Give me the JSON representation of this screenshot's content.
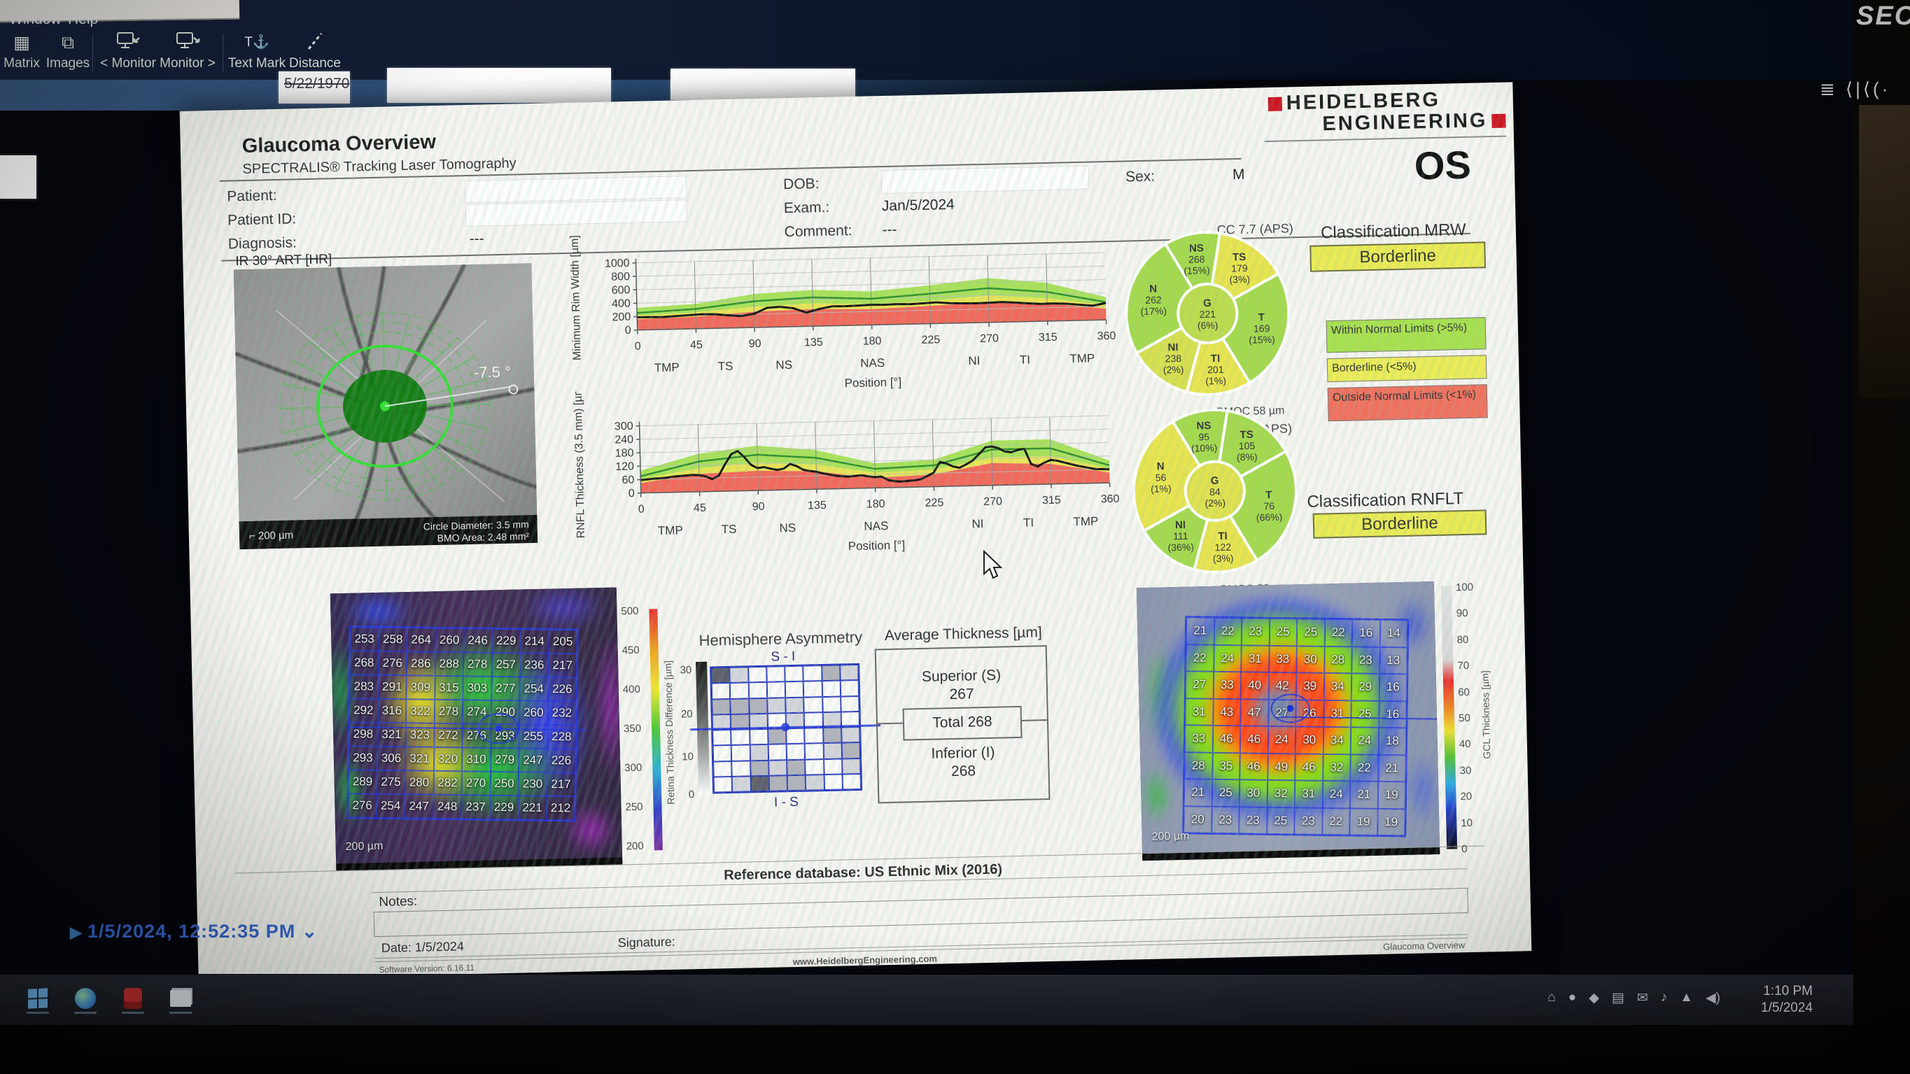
{
  "scene": {
    "wall_sign": "SECT",
    "corner_glyphs": "≣ ⟨|⟨(·",
    "struck_text": "5/22/1970",
    "status_timestamp": "1/5/2024, 12:52:35 PM",
    "taskbar_time": "1:10 PM",
    "taskbar_date": "1/5/2024"
  },
  "menu": {
    "items": [
      "Window",
      "Help"
    ]
  },
  "toolbar": {
    "items": [
      {
        "label": "Matrix",
        "icon": "matrix-icon",
        "glyph": "▦"
      },
      {
        "label": "Images",
        "icon": "images-icon",
        "glyph": "⧉"
      },
      {
        "label": "< Monitor",
        "icon": "monitor-left-icon",
        "glyph": "svg-left"
      },
      {
        "label": "Monitor >",
        "icon": "monitor-right-icon",
        "glyph": "svg-right"
      },
      {
        "label": "Text Mark",
        "icon": "text-mark-icon",
        "glyph": "T⚓"
      },
      {
        "label": "Distance",
        "icon": "distance-icon",
        "glyph": "svg-dist"
      }
    ]
  },
  "report": {
    "title": "Glaucoma Overview",
    "subtitle": "SPECTRALIS® Tracking Laser Tomography",
    "brand": {
      "line1": "HEIDELBERG",
      "line2": "ENGINEERING",
      "accent": "#cc1420"
    },
    "laterality": "OS",
    "patient": {
      "patient_label": "Patient:",
      "patient_id_label": "Patient ID:",
      "diagnosis_label": "Diagnosis:",
      "diagnosis_value": "---",
      "dob_label": "DOB:",
      "exam_label": "Exam.:",
      "exam_value": "Jan/5/2024",
      "comment_label": "Comment:",
      "comment_value": "---",
      "sex_label": "Sex:",
      "sex_value": "M"
    },
    "fundus": {
      "tag": "IR 30° ART [HR]",
      "angle_annotation": "-7.5 °",
      "scale": "200 µm",
      "circle_diameter": "Circle Diameter: 3.5 mm",
      "bmo_area": "BMO Area: 2.48 mm²"
    },
    "classification_mrw": {
      "title": "Classification MRW",
      "status": "Borderline"
    },
    "classification_rnfl": {
      "title": "Classification RNFLT",
      "status": "Borderline"
    },
    "legend": [
      {
        "text": "Within Normal Limits (>5%)",
        "color": "#a8e04e",
        "lines": 2
      },
      {
        "text": "Borderline (<5%)",
        "color": "#ebec58",
        "lines": 1
      },
      {
        "text": "Outside Normal Limits (<1%)",
        "color": "#f0705e",
        "lines": 2
      }
    ],
    "mrw_pie": {
      "caption_top": "CC 7.7 (APS)",
      "caption_bottom": "△ BMOC 58 µm",
      "center": {
        "label": "G",
        "value": 221,
        "pct": "(6%)",
        "color": "#bcdb4d"
      },
      "sectors": [
        {
          "label": "NS",
          "value": 268,
          "pct": "(15%)",
          "color": "#a5d94d",
          "a0": 330,
          "a1": 370
        },
        {
          "label": "TS",
          "value": 179,
          "pct": "(3%)",
          "color": "#e8e44f",
          "a0": 10,
          "a1": 62
        },
        {
          "label": "T",
          "value": 169,
          "pct": "(15%)",
          "color": "#a5d94d",
          "a0": 62,
          "a1": 150
        },
        {
          "label": "TI",
          "value": 201,
          "pct": "(1%)",
          "color": "#e8e44f",
          "a0": 150,
          "a1": 196
        },
        {
          "label": "NI",
          "value": 238,
          "pct": "(2%)",
          "color": "#d7e04e",
          "a0": 196,
          "a1": 242
        },
        {
          "label": "N",
          "value": 262,
          "pct": "(17%)",
          "color": "#a5d94d",
          "a0": 242,
          "a1": 330
        }
      ]
    },
    "rnfl_pie": {
      "caption_top": "CC 7.7 (APS)",
      "caption_bottom": "△ BMOC 58 µm",
      "center": {
        "label": "G",
        "value": 84,
        "pct": "(2%)",
        "color": "#e0e14f"
      },
      "sectors": [
        {
          "label": "NS",
          "value": 95,
          "pct": "(10%)",
          "color": "#a5d94d",
          "a0": 330,
          "a1": 370
        },
        {
          "label": "TS",
          "value": 105,
          "pct": "(8%)",
          "color": "#a5d94d",
          "a0": 10,
          "a1": 62
        },
        {
          "label": "T",
          "value": 76,
          "pct": "(66%)",
          "color": "#a5d94d",
          "a0": 62,
          "a1": 150
        },
        {
          "label": "TI",
          "value": 122,
          "pct": "(3%)",
          "color": "#e8e44f",
          "a0": 150,
          "a1": 196
        },
        {
          "label": "NI",
          "value": 111,
          "pct": "(36%)",
          "color": "#a5d94d",
          "a0": 196,
          "a1": 242
        },
        {
          "label": "N",
          "value": 56,
          "pct": "(1%)",
          "color": "#e8e44f",
          "a0": 242,
          "a1": 330
        }
      ]
    },
    "mrw_chart": {
      "type": "line",
      "ylabel": "Minimum Rim Width [µm]",
      "xlabel": "Position [°]",
      "ylim": [
        0,
        1000
      ],
      "yticks": [
        0,
        200,
        400,
        600,
        800,
        1000
      ],
      "xticks": [
        0,
        45,
        90,
        135,
        180,
        225,
        270,
        315,
        360
      ],
      "sector_labels": [
        {
          "t": "TMP",
          "x": 22
        },
        {
          "t": "TS",
          "x": 67
        },
        {
          "t": "NS",
          "x": 112
        },
        {
          "t": "NAS",
          "x": 180
        },
        {
          "t": "NI",
          "x": 258
        },
        {
          "t": "TI",
          "x": 297
        },
        {
          "t": "TMP",
          "x": 341
        }
      ],
      "bands": {
        "x": [
          0,
          45,
          90,
          135,
          180,
          225,
          270,
          315,
          360
        ],
        "green_top": [
          330,
          370,
          500,
          540,
          500,
          570,
          660,
          570,
          340
        ],
        "yellow_top": [
          215,
          240,
          310,
          340,
          310,
          340,
          400,
          340,
          220
        ],
        "red_top": [
          160,
          180,
          235,
          255,
          235,
          265,
          300,
          265,
          165
        ],
        "mean": [
          255,
          295,
          390,
          430,
          390,
          445,
          510,
          435,
          265
        ]
      },
      "patient": {
        "x": [
          0,
          10,
          20,
          30,
          40,
          50,
          60,
          70,
          80,
          90,
          100,
          110,
          120,
          130,
          140,
          150,
          160,
          170,
          180,
          190,
          200,
          210,
          220,
          230,
          240,
          250,
          260,
          270,
          280,
          290,
          300,
          310,
          320,
          330,
          340,
          350,
          360
        ],
        "y": [
          190,
          188,
          185,
          195,
          205,
          215,
          210,
          190,
          175,
          205,
          290,
          300,
          275,
          205,
          255,
          290,
          288,
          292,
          300,
          296,
          302,
          296,
          305,
          315,
          300,
          292,
          288,
          292,
          300,
          288,
          272,
          258,
          262,
          252,
          232,
          215,
          250
        ]
      }
    },
    "rnfl_chart": {
      "type": "line",
      "ylabel": "RNFL Thickness (3.5 mm) [µm]",
      "xlabel": "Position [°]",
      "ylim": [
        0,
        300
      ],
      "yticks": [
        0,
        60,
        120,
        180,
        240,
        300
      ],
      "xticks": [
        0,
        45,
        90,
        135,
        180,
        225,
        270,
        315,
        360
      ],
      "sector_labels": [
        {
          "t": "TMP",
          "x": 22
        },
        {
          "t": "TS",
          "x": 67
        },
        {
          "t": "NS",
          "x": 112
        },
        {
          "t": "NAS",
          "x": 180
        },
        {
          "t": "NI",
          "x": 258
        },
        {
          "t": "TI",
          "x": 297
        },
        {
          "t": "TMP",
          "x": 341
        }
      ],
      "bands": {
        "x": [
          0,
          45,
          90,
          135,
          180,
          225,
          270,
          315,
          360
        ],
        "green_top": [
          100,
          170,
          200,
          175,
          110,
          120,
          200,
          200,
          100
        ],
        "yellow_top": [
          62,
          105,
          125,
          110,
          68,
          75,
          125,
          125,
          64
        ],
        "red_top": [
          45,
          80,
          88,
          80,
          45,
          55,
          100,
          90,
          46
        ],
        "mean": [
          75,
          135,
          160,
          140,
          85,
          95,
          160,
          160,
          78
        ]
      },
      "patient": {
        "x": [
          0,
          5,
          10,
          15,
          20,
          25,
          30,
          35,
          40,
          45,
          50,
          55,
          60,
          65,
          70,
          75,
          80,
          85,
          90,
          95,
          100,
          105,
          110,
          115,
          120,
          125,
          130,
          135,
          140,
          145,
          150,
          155,
          160,
          165,
          170,
          175,
          180,
          185,
          190,
          195,
          200,
          205,
          210,
          215,
          220,
          225,
          230,
          235,
          240,
          245,
          250,
          255,
          260,
          265,
          270,
          275,
          280,
          285,
          290,
          295,
          300,
          305,
          310,
          315,
          320,
          325,
          330,
          335,
          340,
          345,
          350,
          355,
          360
        ],
        "y": [
          58,
          60,
          63,
          64,
          66,
          70,
          72,
          74,
          76,
          74,
          68,
          55,
          70,
          120,
          165,
          178,
          150,
          115,
          100,
          104,
          96,
          90,
          95,
          115,
          105,
          88,
          82,
          78,
          70,
          64,
          58,
          55,
          53,
          56,
          58,
          52,
          48,
          50,
          34,
          28,
          26,
          28,
          30,
          34,
          48,
          62,
          110,
          102,
          88,
          82,
          96,
          112,
          140,
          170,
          174,
          166,
          150,
          146,
          156,
          160,
          92,
          80,
          96,
          108,
          104,
          96,
          88,
          80,
          74,
          68,
          62,
          62,
          60
        ]
      }
    },
    "retina_map": {
      "scale": "200 µm",
      "rows": [
        [
          253,
          258,
          264,
          260,
          246,
          229,
          214,
          205
        ],
        [
          268,
          276,
          286,
          288,
          278,
          257,
          236,
          217
        ],
        [
          283,
          291,
          309,
          315,
          303,
          277,
          254,
          226
        ],
        [
          292,
          316,
          322,
          278,
          274,
          290,
          260,
          232
        ],
        [
          298,
          321,
          323,
          272,
          276,
          293,
          255,
          228
        ],
        [
          293,
          306,
          321,
          320,
          310,
          279,
          247,
          226
        ],
        [
          289,
          275,
          280,
          282,
          270,
          250,
          230,
          217
        ],
        [
          276,
          254,
          247,
          248,
          237,
          229,
          221,
          212
        ]
      ]
    },
    "retina_colorbar": {
      "ticks": [
        500,
        450,
        400,
        350,
        300,
        250,
        200
      ]
    },
    "asymmetry": {
      "title": "Hemisphere Asymmetry",
      "top_label": "S - I",
      "bottom_label": "I - S",
      "bar_label": "Retina Thickness Difference [µm]",
      "bar_ticks": [
        30,
        20,
        10,
        0
      ],
      "shades": [
        [
          3,
          1,
          0,
          0,
          0,
          0,
          2,
          1
        ],
        [
          0,
          0,
          0,
          0,
          0,
          0,
          0,
          0
        ],
        [
          2,
          2,
          2,
          1,
          1,
          0,
          0,
          0
        ],
        [
          1,
          2,
          1,
          0,
          1,
          0,
          1,
          0
        ],
        [
          0,
          0,
          0,
          2,
          0,
          0,
          2,
          1
        ],
        [
          0,
          0,
          1,
          0,
          0,
          0,
          1,
          2
        ],
        [
          0,
          0,
          2,
          1,
          2,
          0,
          0,
          1
        ],
        [
          0,
          1,
          3,
          2,
          2,
          1,
          0,
          0
        ]
      ]
    },
    "average_thickness": {
      "title": "Average Thickness [µm]",
      "superior_label": "Superior (S)",
      "superior_value": "267",
      "total_label": "Total 268",
      "inferior_label": "Inferior (I)",
      "inferior_value": "268"
    },
    "gcl_map": {
      "scale": "200 µm",
      "rows": [
        [
          21,
          22,
          23,
          25,
          25,
          22,
          16,
          14
        ],
        [
          22,
          24,
          31,
          33,
          30,
          28,
          23,
          13
        ],
        [
          27,
          33,
          40,
          42,
          39,
          34,
          29,
          16
        ],
        [
          31,
          43,
          47,
          27,
          26,
          31,
          25,
          16
        ],
        [
          33,
          46,
          46,
          24,
          30,
          34,
          24,
          18
        ],
        [
          28,
          35,
          46,
          49,
          46,
          32,
          22,
          21
        ],
        [
          21,
          25,
          30,
          32,
          31,
          24,
          21,
          19
        ],
        [
          20,
          23,
          23,
          25,
          23,
          22,
          19,
          19
        ]
      ]
    },
    "gcl_colorbar": {
      "label": "GCL Thickness [µm]",
      "ticks": [
        100,
        90,
        80,
        70,
        60,
        50,
        40,
        30,
        20,
        10,
        0
      ]
    },
    "footer": {
      "reference": "Reference database: US Ethnic Mix (2016)",
      "notes_label": "Notes:",
      "date": "Date: 1/5/2024",
      "signature_label": "Signature:",
      "software": "Software Version: 6.16.11",
      "website": "www.HeidelbergEngineering.com",
      "doc_name": "Glaucoma Overview"
    }
  }
}
